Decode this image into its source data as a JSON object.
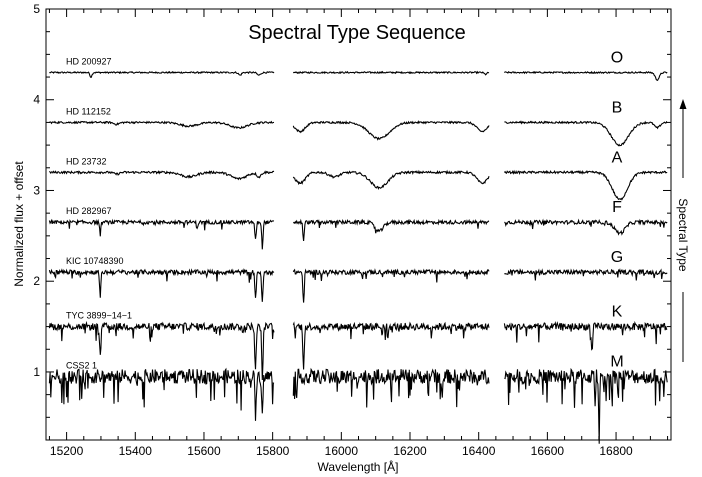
{
  "chart_data": {
    "type": "line",
    "title": "Spectral Type Sequence",
    "xlabel": "Wavelength [Å]",
    "ylabel": "Normalized flux + offset",
    "xlim": [
      15140,
      16960
    ],
    "ylim": [
      0.25,
      5.0
    ],
    "x_ticks": [
      15200,
      15400,
      15600,
      15800,
      16000,
      16200,
      16400,
      16600,
      16800
    ],
    "y_ticks": [
      1,
      2,
      3,
      4,
      5
    ],
    "grid": false,
    "segments": [
      [
        15150,
        15805
      ],
      [
        15860,
        16430
      ],
      [
        16475,
        16950
      ]
    ],
    "arrow_label": "Spectral Type",
    "series": [
      {
        "name": "HD 200927",
        "type_label": "O",
        "offset": 4.3,
        "noise": 0.008,
        "lines": [
          [
            15271,
            0.05,
            3
          ],
          [
            15705,
            0.03,
            4
          ],
          [
            15760,
            0.03,
            5
          ],
          [
            16420,
            0.02,
            4
          ],
          [
            16920,
            0.08,
            6
          ]
        ]
      },
      {
        "name": "HD 112152",
        "type_label": "B",
        "offset": 3.75,
        "noise": 0.01,
        "lines": [
          [
            15345,
            0.02,
            8
          ],
          [
            15556,
            0.04,
            25
          ],
          [
            15701,
            0.06,
            25
          ],
          [
            15880,
            0.1,
            15
          ],
          [
            16110,
            0.18,
            30
          ],
          [
            16410,
            0.1,
            15
          ],
          [
            16811,
            0.25,
            25
          ],
          [
            16920,
            0.06,
            8
          ]
        ]
      },
      {
        "name": "HD 23732",
        "type_label": "A",
        "offset": 3.2,
        "noise": 0.012,
        "lines": [
          [
            15345,
            0.02,
            8
          ],
          [
            15556,
            0.05,
            22
          ],
          [
            15701,
            0.07,
            22
          ],
          [
            15760,
            0.05,
            6
          ],
          [
            15880,
            0.12,
            15
          ],
          [
            15980,
            0.05,
            15
          ],
          [
            16110,
            0.17,
            25
          ],
          [
            16410,
            0.12,
            15
          ],
          [
            16811,
            0.3,
            22
          ]
        ]
      },
      {
        "name": "HD 282967",
        "type_label": "F",
        "offset": 2.65,
        "noise": 0.02,
        "lines": [
          [
            15298,
            0.12,
            2
          ],
          [
            15580,
            0.06,
            2
          ],
          [
            15750,
            0.2,
            2
          ],
          [
            15770,
            0.28,
            2
          ],
          [
            15890,
            0.2,
            2
          ],
          [
            16110,
            0.1,
            12
          ],
          [
            16811,
            0.12,
            15
          ]
        ]
      },
      {
        "name": "KIC 10748390",
        "type_label": "G",
        "offset": 2.1,
        "noise": 0.025,
        "lines": [
          [
            15298,
            0.25,
            2
          ],
          [
            15750,
            0.3,
            2
          ],
          [
            15770,
            0.35,
            2
          ],
          [
            15890,
            0.35,
            2
          ]
        ]
      },
      {
        "name": "TYC 3899−14−1",
        "type_label": "K",
        "offset": 1.5,
        "noise": 0.04,
        "lines": [
          [
            15298,
            0.35,
            2
          ],
          [
            15750,
            0.5,
            2
          ],
          [
            15770,
            0.6,
            2
          ],
          [
            15890,
            0.45,
            2
          ],
          [
            16730,
            0.3,
            2
          ]
        ]
      },
      {
        "name": "CSS2 1",
        "type_label": "M",
        "offset": 0.95,
        "noise": 0.08,
        "lines": [
          [
            15750,
            0.3,
            2
          ],
          [
            15770,
            0.35,
            2
          ],
          [
            16750,
            0.45,
            2
          ]
        ]
      }
    ]
  }
}
